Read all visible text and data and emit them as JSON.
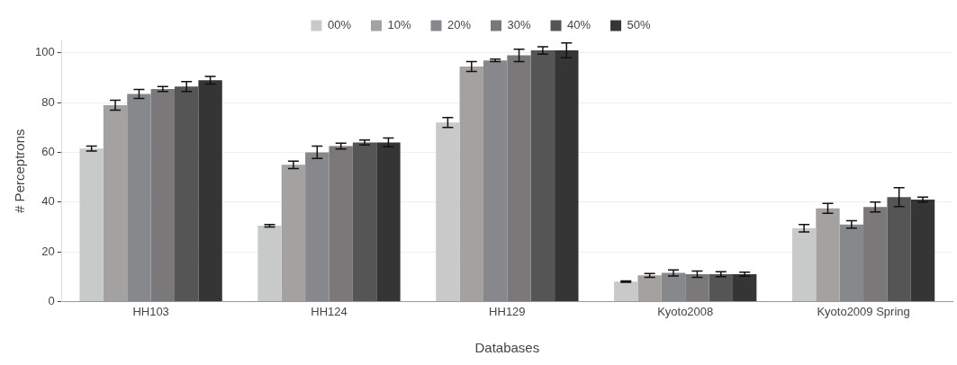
{
  "chart_data": {
    "type": "bar",
    "xlabel": "Databases",
    "ylabel": "# Perceptrons",
    "categories": [
      "HH103",
      "HH124",
      "HH129",
      "Kyoto2008",
      "Kyoto2009 Spring"
    ],
    "series": [
      {
        "name": "00%",
        "color": "#c8c9c9",
        "values": [
          61.5,
          30.5,
          72,
          8,
          29.5
        ],
        "errors": [
          1,
          0.5,
          2,
          0.3,
          1.5
        ]
      },
      {
        "name": "10%",
        "color": "#a3a2a1",
        "values": [
          79,
          55,
          94.5,
          10.5,
          37.5
        ],
        "errors": [
          2,
          1.5,
          2,
          0.8,
          2
        ]
      },
      {
        "name": "20%",
        "color": "#87888b",
        "values": [
          83.5,
          60,
          97,
          11.5,
          31
        ],
        "errors": [
          1.8,
          2.5,
          0.5,
          1.2,
          1.5
        ]
      },
      {
        "name": "30%",
        "color": "#7a7879",
        "values": [
          85.5,
          62.5,
          99,
          11,
          38
        ],
        "errors": [
          1,
          1.2,
          2.5,
          1.3,
          2
        ]
      },
      {
        "name": "40%",
        "color": "#555555",
        "values": [
          86.5,
          64,
          101,
          11,
          42
        ],
        "errors": [
          2,
          1,
          1.5,
          1,
          3.8
        ]
      },
      {
        "name": "50%",
        "color": "#353535",
        "values": [
          89,
          64,
          101,
          11,
          41
        ],
        "errors": [
          1.5,
          1.8,
          3,
          0.8,
          1
        ]
      }
    ],
    "ylim": [
      0,
      105
    ],
    "yticks": [
      0,
      20,
      40,
      60,
      80,
      100
    ],
    "grid": "y",
    "legend": "top"
  }
}
